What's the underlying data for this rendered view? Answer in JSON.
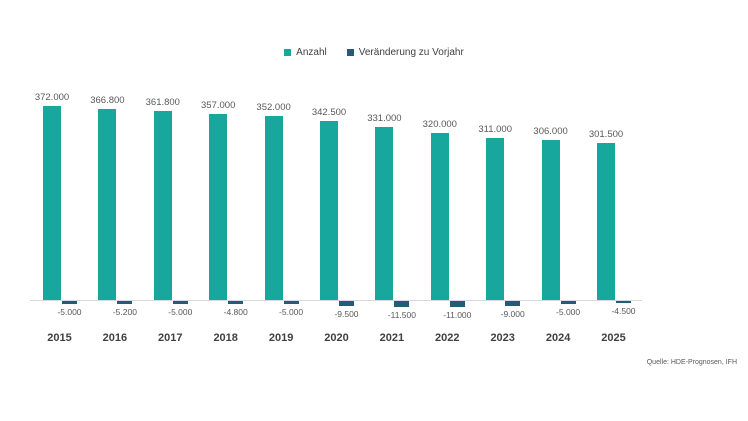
{
  "source_note": "Quelle: HDE-Prognosen, IFH",
  "colors": {
    "anzahl": "#18a79d",
    "veraenderung": "#1f5d78",
    "axis": "#d9d9d9",
    "label_text": "#595959",
    "year_text": "#404040",
    "background": "#ffffff"
  },
  "chart_data": {
    "type": "bar",
    "title": "",
    "categories": [
      "2015",
      "2016",
      "2017",
      "2018",
      "2019",
      "2020",
      "2021",
      "2022",
      "2023",
      "2024",
      "2025"
    ],
    "series": [
      {
        "name": "Anzahl",
        "color": "#18a79d",
        "values": [
          372000,
          366800,
          361800,
          357000,
          352000,
          342500,
          331000,
          320000,
          311000,
          306000,
          301500
        ],
        "labels": [
          "372.000",
          "366.800",
          "361.800",
          "357.000",
          "352.000",
          "342.500",
          "331.000",
          "320.000",
          "311.000",
          "306.000",
          "301.500"
        ]
      },
      {
        "name": "Veränderung zu Vorjahr",
        "color": "#1f5d78",
        "values": [
          -5000,
          -5200,
          -5000,
          -4800,
          -5000,
          -9500,
          -11500,
          -11000,
          -9000,
          -5000,
          -4500
        ],
        "labels": [
          "-5.000",
          "-5.200",
          "-5.000",
          "-4.800",
          "-5.000",
          "-9.500",
          "-11.500",
          "-11.000",
          "-9.000",
          "-5.000",
          "-4.500"
        ]
      }
    ],
    "ylim": [
      -11500,
      372000
    ],
    "grid": false,
    "axes_visible": false,
    "legend_position": "top",
    "data_labels": true
  }
}
